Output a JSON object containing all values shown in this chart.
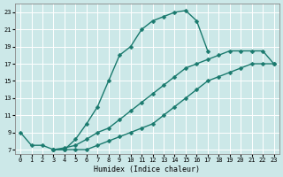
{
  "xlabel": "Humidex (Indice chaleur)",
  "bg_color": "#cce8e8",
  "grid_color": "#ffffff",
  "line_color": "#1a7a6e",
  "xlim": [
    -0.5,
    23.5
  ],
  "ylim": [
    6.5,
    24
  ],
  "xticks": [
    0,
    1,
    2,
    3,
    4,
    5,
    6,
    7,
    8,
    9,
    10,
    11,
    12,
    13,
    14,
    15,
    16,
    17,
    18,
    19,
    20,
    21,
    22,
    23
  ],
  "yticks": [
    7,
    9,
    11,
    13,
    15,
    17,
    19,
    21,
    23
  ],
  "line1_x": [
    0,
    1,
    2,
    3,
    4,
    5,
    6,
    7,
    8,
    9,
    10,
    11,
    12,
    13,
    14,
    15,
    16,
    17
  ],
  "line1_y": [
    9,
    7.5,
    7.5,
    7,
    7,
    8.2,
    10,
    12,
    15,
    18,
    19,
    21,
    22,
    22.5,
    23,
    23.2,
    22,
    18.5
  ],
  "line2_x": [
    3,
    4,
    5,
    6,
    7,
    8,
    9,
    10,
    11,
    12,
    13,
    14,
    15,
    16,
    17,
    18,
    19,
    20,
    21,
    22,
    23
  ],
  "line2_y": [
    7,
    7.2,
    7.5,
    8.2,
    9,
    9.5,
    10.5,
    11.5,
    12.5,
    13.5,
    14.5,
    15.5,
    16.5,
    17,
    17.5,
    18,
    18.5,
    18.5,
    18.5,
    18.5,
    17
  ],
  "line3_x": [
    3,
    4,
    5,
    6,
    7,
    8,
    9,
    10,
    11,
    12,
    13,
    14,
    15,
    16,
    17,
    18,
    19,
    20,
    21,
    22,
    23
  ],
  "line3_y": [
    7,
    7,
    7,
    7,
    7.5,
    8,
    8.5,
    9,
    9.5,
    10,
    11,
    12,
    13,
    14,
    15,
    15.5,
    16,
    16.5,
    17,
    17,
    17
  ],
  "marker_size": 2.5,
  "linewidth": 1.0
}
